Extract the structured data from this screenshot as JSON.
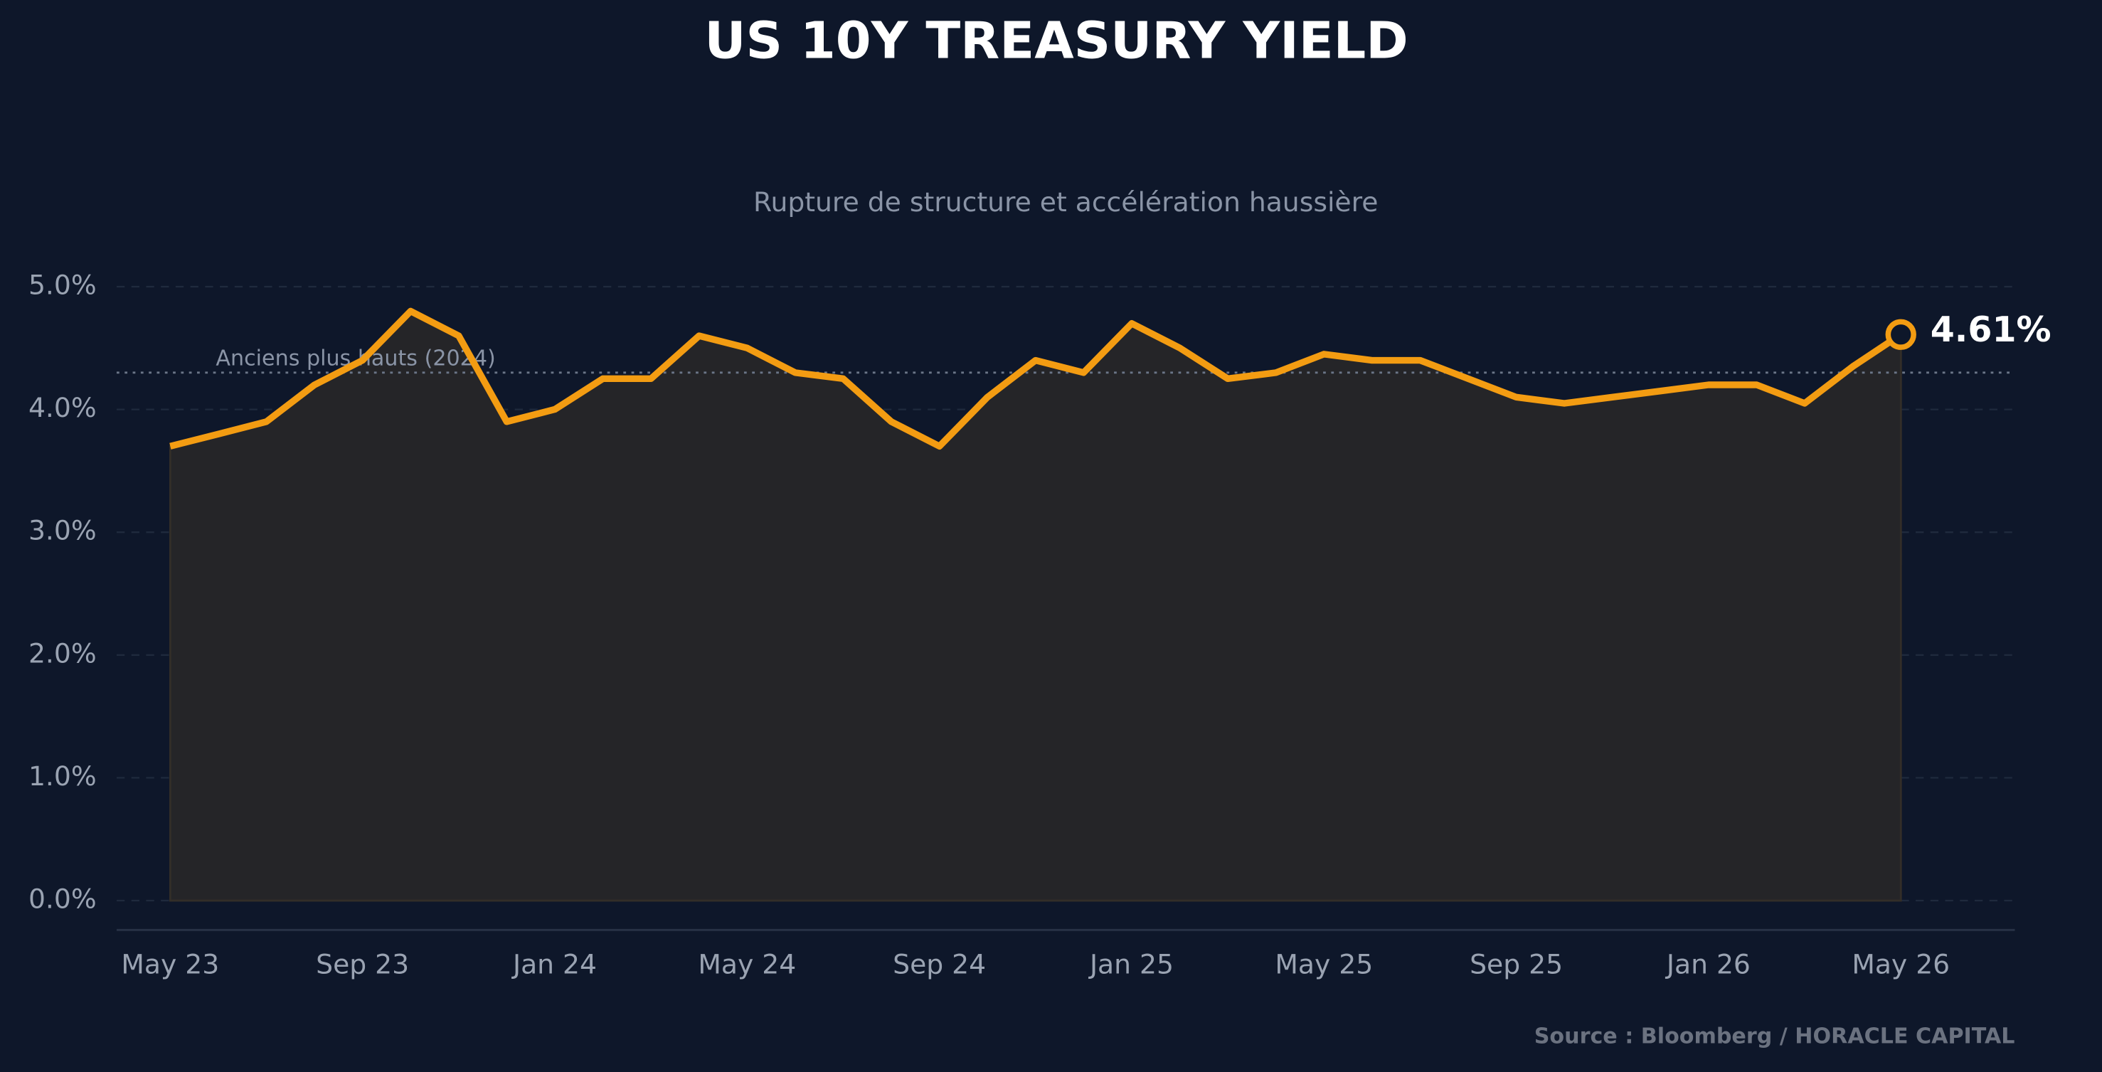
{
  "chart_data": {
    "type": "line",
    "title": "US 10Y TREASURY YIELD",
    "subtitle": "Rupture de structure et accélération haussière",
    "source": "Source : Bloomberg / HORACLE CAPITAL",
    "x": [
      "2023-05",
      "2023-06",
      "2023-07",
      "2023-08",
      "2023-09",
      "2023-10",
      "2023-11",
      "2023-12",
      "2024-01",
      "2024-02",
      "2024-03",
      "2024-04",
      "2024-05",
      "2024-06",
      "2024-07",
      "2024-08",
      "2024-09",
      "2024-10",
      "2024-11",
      "2024-12",
      "2025-01",
      "2025-02",
      "2025-03",
      "2025-04",
      "2025-05",
      "2025-06",
      "2025-07",
      "2025-08",
      "2025-09",
      "2025-10",
      "2025-11",
      "2025-12",
      "2026-01",
      "2026-02",
      "2026-03",
      "2026-04",
      "2026-05"
    ],
    "values": [
      3.7,
      3.8,
      3.9,
      4.2,
      4.4,
      4.8,
      4.6,
      3.9,
      4.0,
      4.25,
      4.25,
      4.6,
      4.5,
      4.3,
      4.25,
      3.9,
      3.7,
      4.1,
      4.4,
      4.3,
      4.7,
      4.5,
      4.25,
      4.3,
      4.45,
      4.4,
      4.4,
      4.25,
      4.1,
      4.05,
      4.1,
      4.15,
      4.2,
      4.2,
      4.05,
      4.35,
      4.61
    ],
    "value_labels": [
      null,
      null,
      null,
      null,
      null,
      null,
      null,
      null,
      null,
      null,
      null,
      null,
      null,
      null,
      null,
      null,
      null,
      null,
      null,
      null,
      null,
      null,
      null,
      null,
      null,
      null,
      null,
      null,
      null,
      null,
      null,
      null,
      null,
      null,
      null,
      null,
      "4.61%"
    ],
    "color": "#f39c12",
    "ylim": [
      -0.25,
      5.25
    ],
    "yticks": [
      {
        "value": 0,
        "label": "0.0%"
      },
      {
        "value": 1,
        "label": "1.0%"
      },
      {
        "value": 2,
        "label": "2.0%"
      },
      {
        "value": 3,
        "label": "3.0%"
      },
      {
        "value": 4,
        "label": "4.0%"
      },
      {
        "value": 5,
        "label": "5.0%"
      }
    ],
    "xticks": [
      {
        "value": "2023-05",
        "label": "May 23"
      },
      {
        "value": "2023-09",
        "label": "Sep 23"
      },
      {
        "value": "2024-01",
        "label": "Jan 24"
      },
      {
        "value": "2024-05",
        "label": "May 24"
      },
      {
        "value": "2024-09",
        "label": "Sep 24"
      },
      {
        "value": "2025-01",
        "label": "Jan 25"
      },
      {
        "value": "2025-05",
        "label": "May 25"
      },
      {
        "value": "2025-09",
        "label": "Sep 25"
      },
      {
        "value": "2026-01",
        "label": "Jan 26"
      },
      {
        "value": "2026-05",
        "label": "May 26"
      }
    ],
    "reference_line": {
      "value": 4.3,
      "label": "Anciens plus hauts (2024)"
    },
    "grid": true
  }
}
